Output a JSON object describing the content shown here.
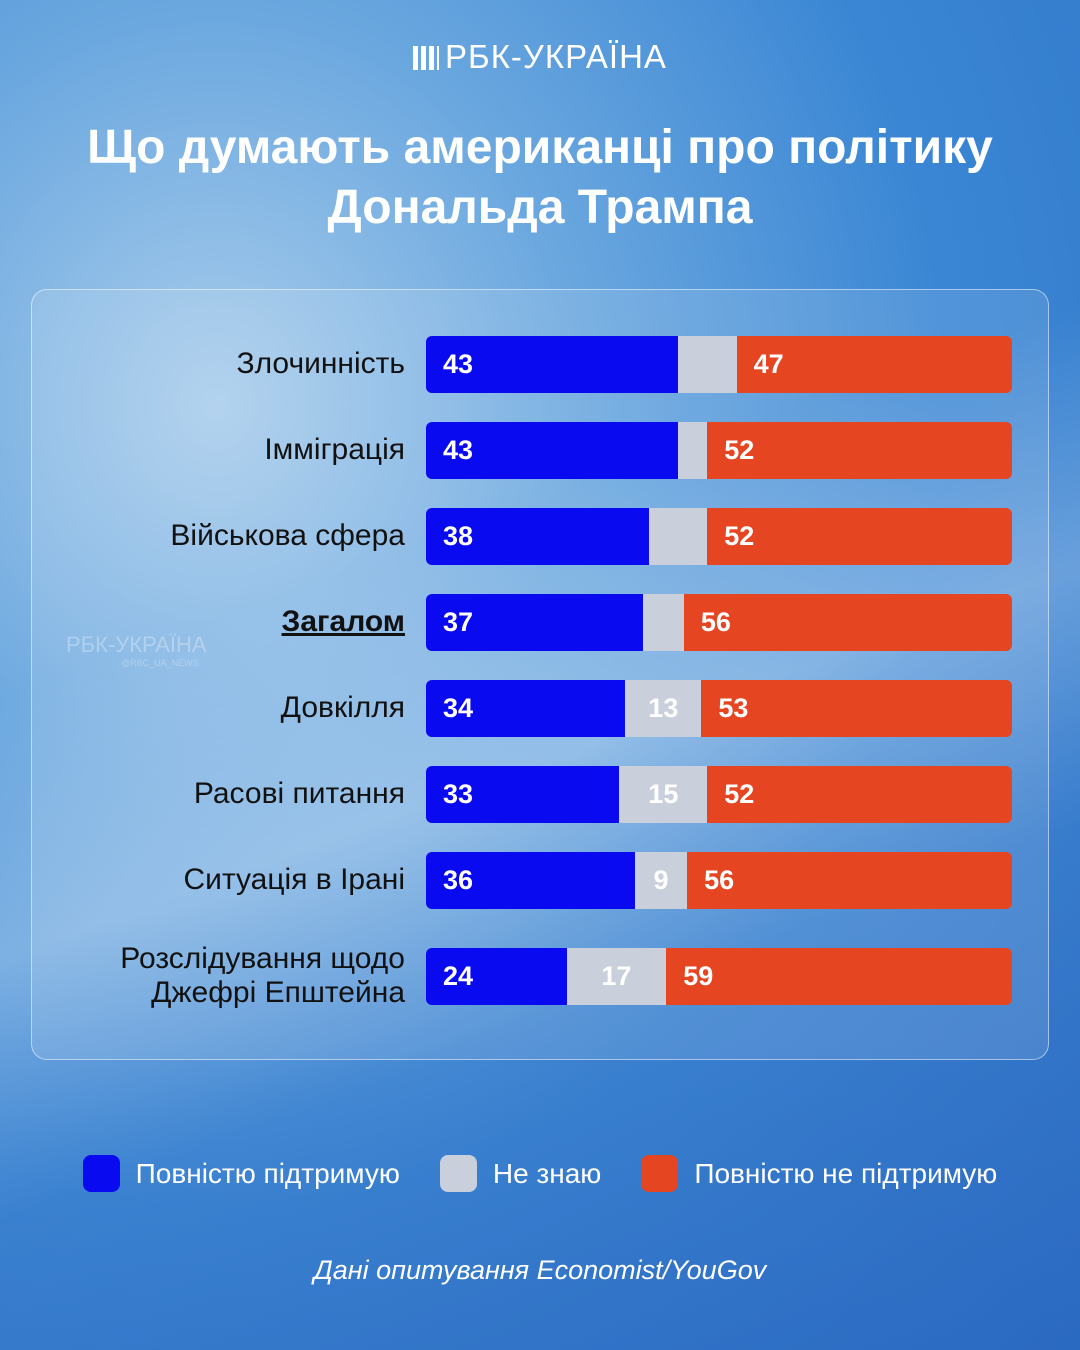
{
  "brand": "РБК-УКРАЇНА",
  "watermark": {
    "brand": "РБК-УКРАЇНА",
    "handle": "@RBC_UA_NEWS"
  },
  "title": "Що думають американці про політику Дональда Трампа",
  "colors": {
    "support": "#0a0af0",
    "neutral": "#c9d0db",
    "oppose": "#e64522"
  },
  "chart_data": {
    "type": "bar",
    "stacked": true,
    "orientation": "horizontal",
    "title": "Що думають американці про політику Дональда Трампа",
    "categories": [
      "Злочинність",
      "Імміграція",
      "Військова сфера",
      "Загалом",
      "Довкілля",
      "Расові питання",
      "Ситуація в Ірані",
      "Розслідування щодо\nДжефрі Епштейна"
    ],
    "series": [
      {
        "name": "Повністю підтримую",
        "values": [
          43,
          43,
          38,
          37,
          34,
          33,
          36,
          24
        ]
      },
      {
        "name": "Не знаю",
        "values": [
          10,
          5,
          10,
          7,
          13,
          15,
          9,
          17
        ],
        "labeled": [
          false,
          false,
          false,
          false,
          true,
          true,
          true,
          true
        ]
      },
      {
        "name": "Повністю не підтримую",
        "values": [
          47,
          52,
          52,
          56,
          53,
          52,
          56,
          59
        ]
      }
    ],
    "highlight": "Загалом",
    "xlim": [
      0,
      100
    ],
    "legend": "bottom"
  },
  "source": "Дані опитування Economist/YouGov"
}
